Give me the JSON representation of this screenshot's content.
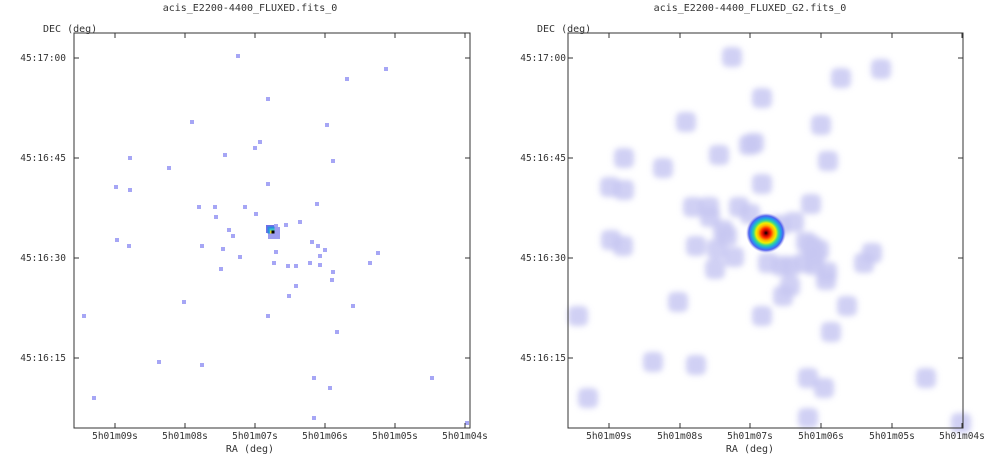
{
  "panels": [
    {
      "title": "acis_E2200-4400_FLUXED.fits_0",
      "ylabel": "DEC (deg)",
      "xlabel": "RA (deg)",
      "yticks": [
        "45:17:00",
        "45:16:45",
        "45:16:30",
        "45:16:15"
      ],
      "xticks": [
        "5h01m09s",
        "5h01m08s",
        "5h01m07s",
        "5h01m06s",
        "5h01m05s",
        "5h01m04s"
      ],
      "image_style": "unsmoothed counts"
    },
    {
      "title": "acis_E2200-4400_FLUXED_G2.fits_0",
      "ylabel": "DEC (deg)",
      "xlabel": "RA (deg)",
      "yticks": [
        "45:17:00",
        "45:16:45",
        "45:16:30",
        "45:16:15"
      ],
      "xticks": [
        "5h01m09s",
        "5h01m08s",
        "5h01m07s",
        "5h01m06s",
        "5h01m05s",
        "5h01m04s"
      ],
      "image_style": "gaussian smoothed"
    }
  ],
  "colors": {
    "frame": "#333333",
    "event": "#a6a6f5",
    "blur": "#c8c8f2",
    "source_core": "#000000"
  }
}
